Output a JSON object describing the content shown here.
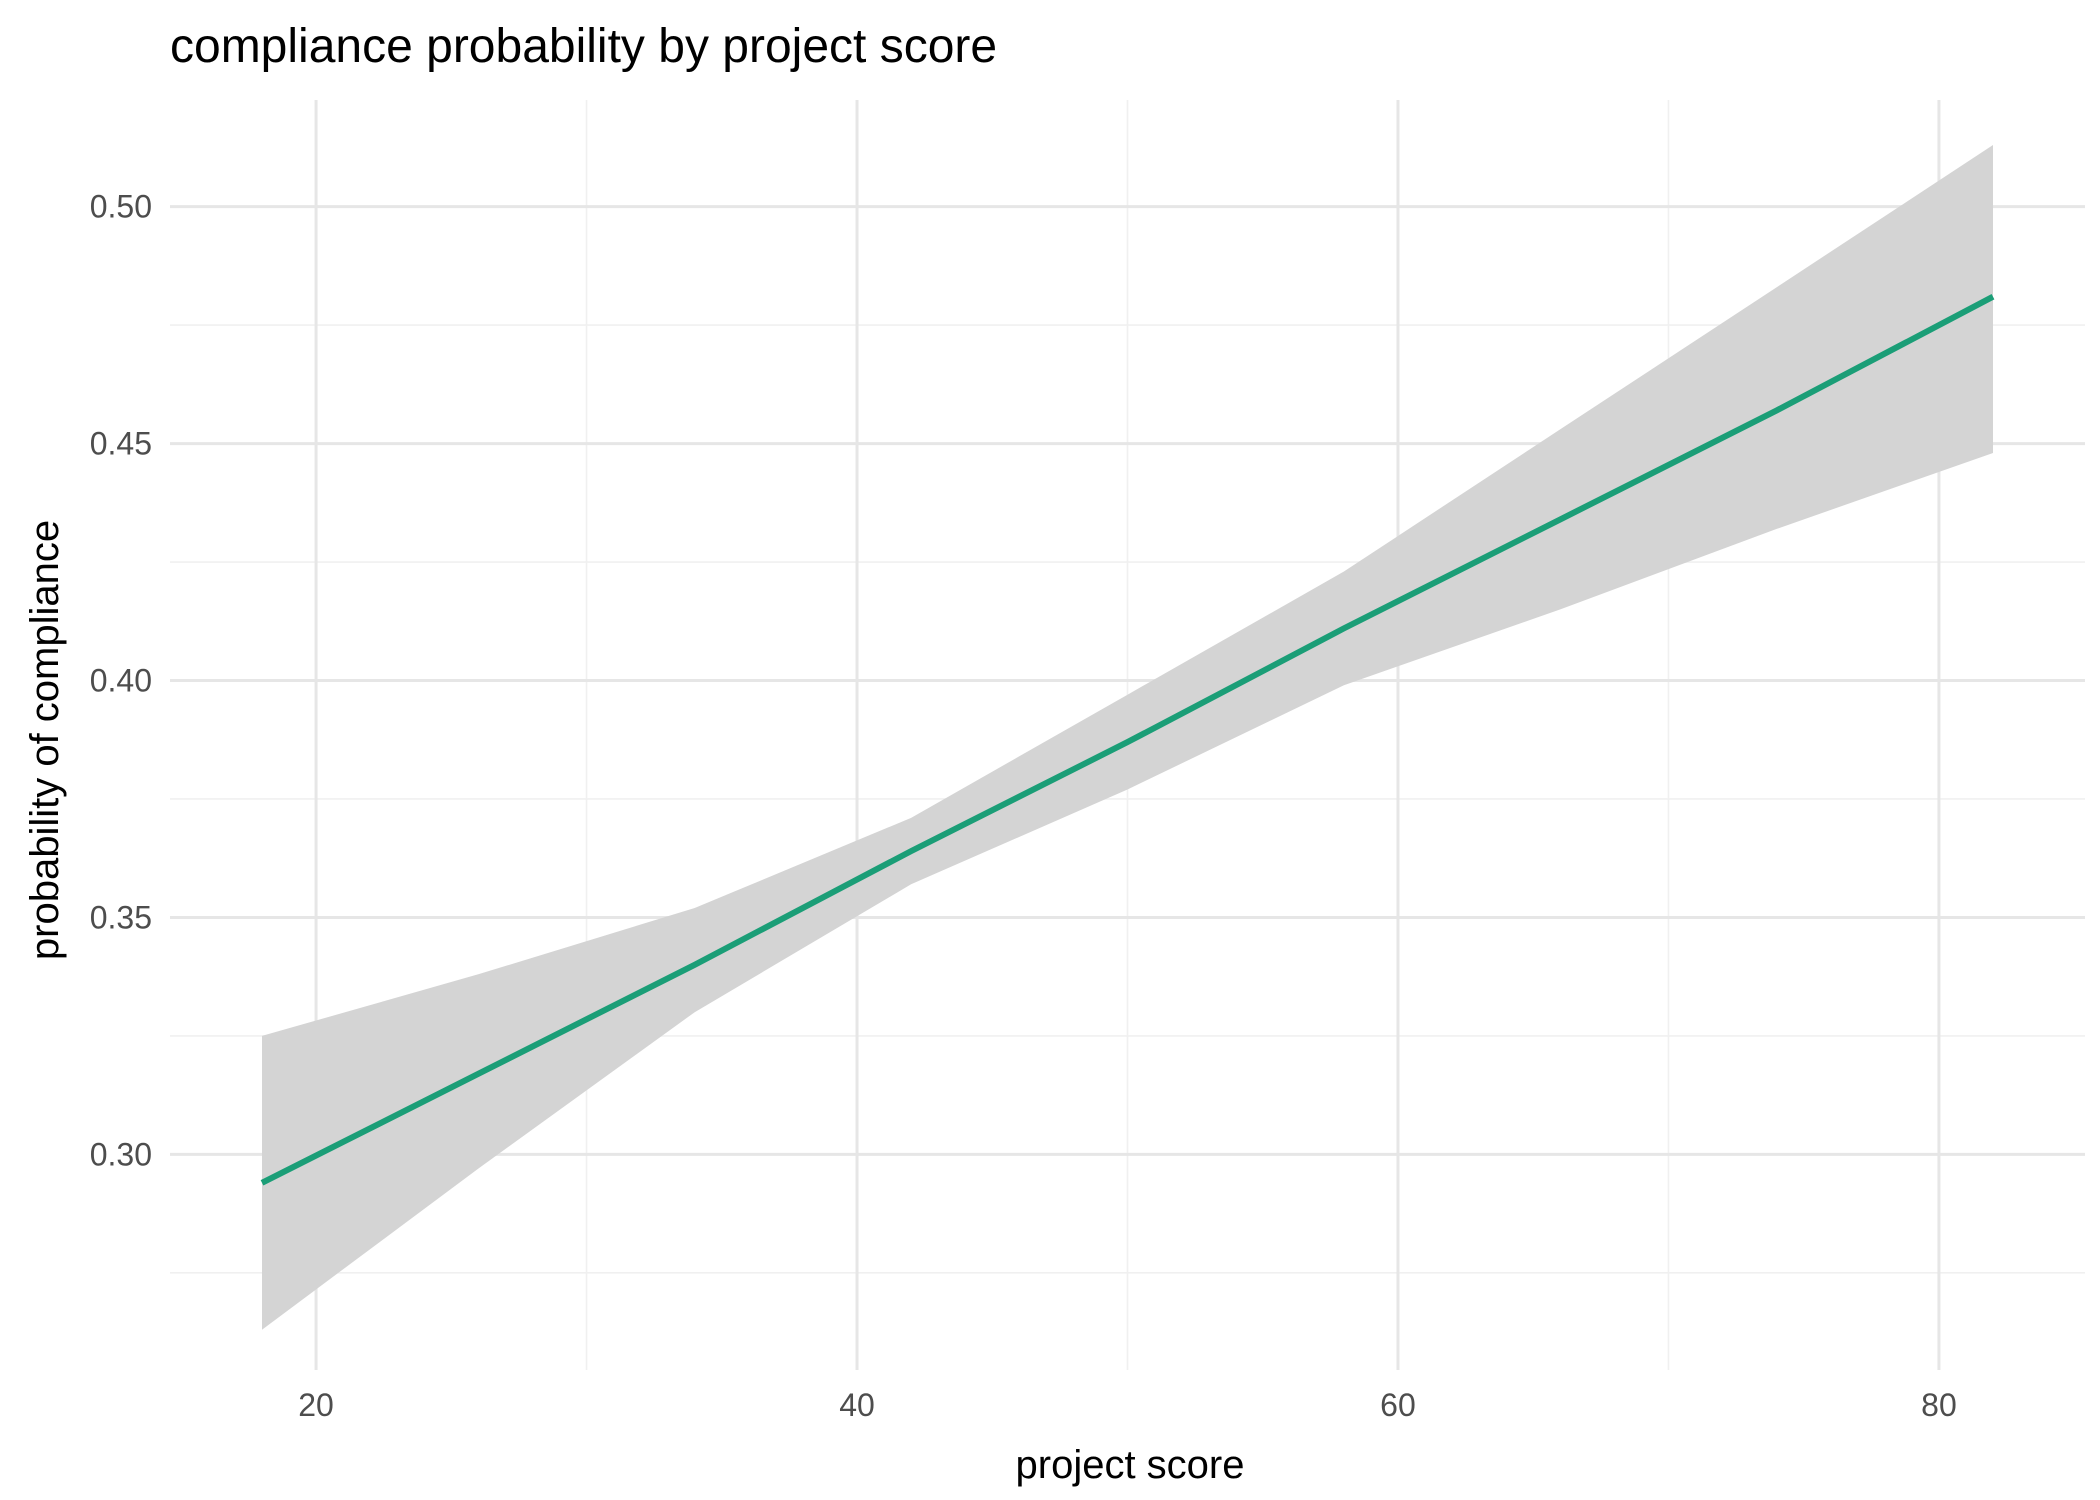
{
  "chart_data": {
    "type": "line",
    "title": "compliance probability by project score",
    "xlabel": "project score",
    "ylabel": "probability of compliance",
    "xlim": [
      14.6,
      85.4
    ],
    "ylim": [
      0.2545,
      0.5225
    ],
    "x_ticks": [
      20,
      40,
      60,
      80
    ],
    "x_tick_labels": [
      "20",
      "40",
      "60",
      "80"
    ],
    "x_minor_ticks": [
      30,
      50,
      70
    ],
    "y_ticks": [
      0.3,
      0.35,
      0.4,
      0.45,
      0.5
    ],
    "y_tick_labels": [
      "0.30",
      "0.35",
      "0.40",
      "0.45",
      "0.50"
    ],
    "y_minor_ticks": [
      0.275,
      0.325,
      0.375,
      0.425,
      0.475
    ],
    "grid": true,
    "legend": "none",
    "series": [
      {
        "x": [
          18,
          26,
          34,
          42,
          50,
          58,
          66,
          74,
          82
        ],
        "y": [
          0.294,
          0.317,
          0.34,
          0.364,
          0.387,
          0.411,
          0.434,
          0.457,
          0.481
        ],
        "color": "#1b9e77",
        "ribbon": {
          "lower": [
            0.263,
            0.297,
            0.33,
            0.357,
            0.377,
            0.399,
            0.415,
            0.432,
            0.448
          ],
          "upper": [
            0.325,
            0.338,
            0.352,
            0.371,
            0.397,
            0.423,
            0.453,
            0.483,
            0.513
          ],
          "color": "#d4d4d4"
        }
      }
    ]
  }
}
